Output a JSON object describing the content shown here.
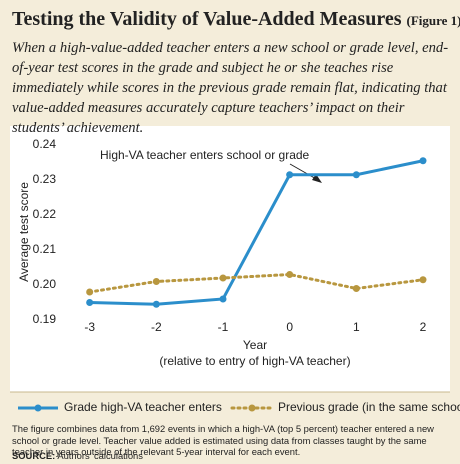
{
  "chart_data": {
    "type": "line",
    "title": "Testing the Validity of Value-Added Measures",
    "figure_label": "(Figure 1)",
    "subtitle": "When a high-value-added teacher enters a new school or grade level, end-of-year test scores in the grade and subject he or she teaches rise immediately while scores in the previous grade remain flat, indicating that value-added measures accurately capture teachers’ impact on their students’ achievement.",
    "ylabel": "Average test score",
    "xlabel": "Year",
    "xlabel_note": "(relative to entry of high-VA teacher)",
    "annotation": "High-VA teacher enters school or grade",
    "x": [
      -3,
      -2,
      -1,
      0,
      1,
      2
    ],
    "xlim": [
      -3.4,
      2.3
    ],
    "xticks": [
      -3,
      -2,
      -1,
      0,
      1,
      2
    ],
    "ylim": [
      0.187,
      0.243
    ],
    "yticks": [
      0.19,
      {
        "value": 0.2,
        "label": "0.20"
      },
      0.21,
      0.22,
      0.23,
      0.24
    ],
    "series": [
      {
        "name": "Grade high-VA teacher enters",
        "color": "#2b8ecb",
        "style": "solid",
        "values": [
          0.195,
          0.1945,
          0.196,
          0.2315,
          0.2315,
          0.2355
        ]
      },
      {
        "name": "Previous grade (in the same school)",
        "color": "#b8973f",
        "style": "dotted",
        "values": [
          0.198,
          0.201,
          0.202,
          0.203,
          0.199,
          0.2015
        ]
      }
    ],
    "note": "The figure combines data from 1,692 events in which a high-VA (top 5 percent) teacher entered a new school or grade level. Teacher value added is estimated using data from classes taught by the same teacher in years outside of the relevant 5-year interval for each event.",
    "source_label": "SOURCE:",
    "source": "Authors’ calculations"
  }
}
